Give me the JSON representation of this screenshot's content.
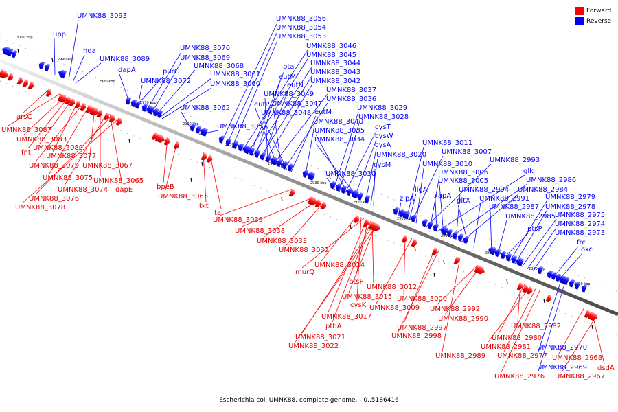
{
  "caption": "Escherichia coli UMNK88, complete genome. - 0..5186416",
  "legend": [
    {
      "label": "Forward",
      "color": "#ff0000"
    },
    {
      "label": "Reverse",
      "color": "#0000ff"
    }
  ],
  "axis_ticks": [
    "3000 kbp",
    "2990 kbp",
    "2980 kbp",
    "2970 kbp",
    "2960 kbp",
    "2950 kbp",
    "2940 kbp",
    "2930 kbp",
    "2920 kbp",
    "2910 kbp",
    "2900 kbp",
    "2890 kbp",
    "2880 kbp",
    "2870 kbp"
  ],
  "reverse_labels": [
    "UMNK88_3093",
    "upp",
    "hda",
    "UMNK88_3089",
    "dapA",
    "purC",
    "UMNK88_3072",
    "UMNK88_3070",
    "UMNK88_3069",
    "UMNK88_3068",
    "UMNK88_3061",
    "UMNK88_3060",
    "UMNK88_3062",
    "UMNK88_3057",
    "UMNK88_3056",
    "UMNK88_3054",
    "UMNK88_3053",
    "UMNK88_3046",
    "UMNK88_3045",
    "pta",
    "UMNK88_3044",
    "eutM",
    "UMNK88_3043",
    "eutN",
    "UMNK88_3042",
    "UMNK88_3049",
    "UMNK88_3037",
    "eutP",
    "UMNK88_3047",
    "UMNK88_3036",
    "UMNK88_3048",
    "eutM",
    "UMNK88_3029",
    "UMNK88_3040",
    "UMNK88_3028",
    "cysT",
    "UMNK88_3035",
    "cysW",
    "UMNK88_3034",
    "cysA",
    "UMNK88_3020",
    "cysM",
    "UMNK88_3030",
    "UMNK88_3011",
    "UMNK88_3007",
    "UMNK88_3010",
    "UMNK88_2993",
    "UMNK88_3006",
    "glk",
    "ligA",
    "UMNK88_3005",
    "UMNK88_2986",
    "UMNK88_2994",
    "UMNK88_2984",
    "xapA",
    "zipA",
    "gltX",
    "UMNK88_2991",
    "UMNK88_2979",
    "UMNK88_2978",
    "UMNK88_2987",
    "UMNK88_2985",
    "UMNK88_2975",
    "UMNK88_2974",
    "ptsP",
    "UMNK88_2973",
    "frc",
    "oxc",
    "UMNK88_2970",
    "UMNK88_2969"
  ],
  "forward_labels": [
    "arsC",
    "UMNK88_3087",
    "UMNK88_3083",
    "fnt",
    "UMNK88_3080",
    "UMNK88_3077",
    "UMNK88_3079",
    "UMNK88_3067",
    "UMNK88_3075",
    "UMNK88_3065",
    "UMNK88_3074",
    "dapE",
    "UMNK88_3076",
    "UMNK88_3078",
    "bpeB",
    "UMNK88_3063",
    "tkt",
    "tal",
    "UMNK88_3039",
    "UMNK88_3038",
    "UMNK88_3033",
    "UMNK88_3032",
    "UMNK88_3024",
    "murQ",
    "ptsP",
    "UMNK88_3012",
    "UMNK88_3015",
    "UMNK88_3000",
    "cysK",
    "UMNK88_3009",
    "UMNK88_2992",
    "UMNK88_3017",
    "UMNK88_2990",
    "UMNK88_2997",
    "ptbA",
    "UMNK88_2998",
    "UMNK88_3021",
    "UMNK88_3022",
    "UMNK88_2989",
    "UMNK88_2982",
    "UMNK88_2980",
    "UMNK88_2981",
    "UMNK88_2977",
    "UMNK88_2968",
    "UMNK88_2976",
    "dsdA",
    "UMNK88_2967"
  ]
}
